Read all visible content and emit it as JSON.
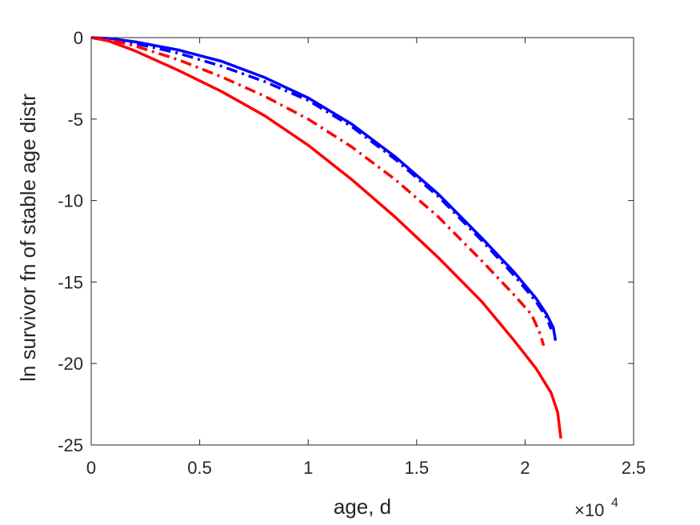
{
  "chart_data": {
    "type": "line",
    "xlabel": "age, d",
    "ylabel": "ln survivor fn of stable age distr",
    "x_multiplier_label": "×10",
    "x_multiplier_exp": "4",
    "xlim": [
      0,
      25000
    ],
    "ylim": [
      -25,
      0
    ],
    "xticks": [
      0,
      5000,
      10000,
      15000,
      20000,
      25000
    ],
    "xtick_labels": [
      "0",
      "0.5",
      "1",
      "1.5",
      "2",
      "2.5"
    ],
    "yticks": [
      0,
      -5,
      -10,
      -15,
      -20,
      -25
    ],
    "ytick_labels": [
      "0",
      "-5",
      "-10",
      "-15",
      "-20",
      "-25"
    ],
    "grid": false,
    "series": [
      {
        "color": "#0000ff",
        "style": "solid",
        "x": [
          0,
          800,
          2000,
          4000,
          6000,
          8000,
          10000,
          12000,
          14000,
          16000,
          18000,
          19500,
          20500,
          21000,
          21300,
          21400
        ],
        "y": [
          0,
          -0.05,
          -0.25,
          -0.75,
          -1.45,
          -2.45,
          -3.7,
          -5.3,
          -7.3,
          -9.6,
          -12.3,
          -14.4,
          -16.0,
          -17.0,
          -17.8,
          -18.6
        ]
      },
      {
        "color": "#0000ff",
        "style": "dashdot",
        "x": [
          0,
          800,
          2000,
          4000,
          6000,
          8000,
          10000,
          12000,
          14000,
          16000,
          18000,
          19500,
          20500,
          21000,
          21200
        ],
        "y": [
          0,
          -0.08,
          -0.35,
          -0.95,
          -1.75,
          -2.7,
          -3.85,
          -5.45,
          -7.45,
          -9.75,
          -12.45,
          -14.6,
          -16.2,
          -17.2,
          -17.9
        ]
      },
      {
        "color": "#ff0000",
        "style": "dashdot",
        "x": [
          0,
          800,
          2000,
          4000,
          6000,
          8000,
          10000,
          12000,
          14000,
          16000,
          18000,
          19500,
          20300,
          20700,
          20850
        ],
        "y": [
          0,
          -0.12,
          -0.5,
          -1.35,
          -2.4,
          -3.6,
          -5.0,
          -6.7,
          -8.7,
          -11.0,
          -13.7,
          -15.8,
          -17.0,
          -18.2,
          -18.9
        ]
      },
      {
        "color": "#ff0000",
        "style": "solid",
        "x": [
          0,
          800,
          2000,
          4000,
          6000,
          8000,
          10000,
          12000,
          14000,
          16000,
          18000,
          19500,
          20500,
          21200,
          21500,
          21650
        ],
        "y": [
          0,
          -0.2,
          -0.8,
          -2.0,
          -3.3,
          -4.8,
          -6.6,
          -8.7,
          -11.0,
          -13.5,
          -16.2,
          -18.6,
          -20.3,
          -21.8,
          -23.0,
          -24.6
        ]
      }
    ]
  }
}
